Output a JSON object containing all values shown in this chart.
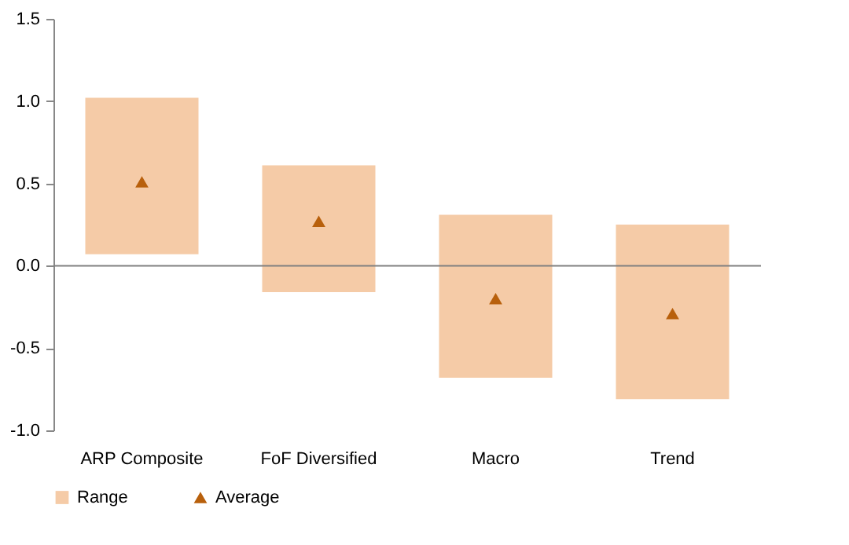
{
  "chart_data": {
    "type": "bar",
    "categories": [
      "ARP Composite",
      "FoF Diversified",
      "Macro",
      "Trend"
    ],
    "series": [
      {
        "name": "Range",
        "type": "bar",
        "color": "#f5cba7",
        "base": [
          0.07,
          -0.16,
          -0.68,
          -0.81
        ],
        "values": [
          0.95,
          0.77,
          0.99,
          1.06
        ]
      },
      {
        "name": "Average",
        "type": "scatter",
        "marker": "triangle",
        "color": "#b8600c",
        "x": [
          "ARP Composite",
          "FoF Diversified",
          "Macro",
          "Trend"
        ],
        "values": [
          0.51,
          0.27,
          -0.2,
          -0.29
        ]
      }
    ],
    "ylim": [
      -1.0,
      1.5
    ],
    "yticks": [
      {
        "value": -1.0,
        "label": "-1.0"
      },
      {
        "value": -0.5,
        "label": "-0.5"
      },
      {
        "value": 0,
        "label": "0.0"
      },
      {
        "value": 0.5,
        "label": "0.5"
      },
      {
        "value": 1.0,
        "label": "1.0"
      },
      {
        "value": 1.5,
        "label": "1.5"
      }
    ],
    "ref_lines": [
      {
        "axis": "y",
        "value": 0,
        "color": "#808080"
      }
    ],
    "grid": false,
    "legend": "bottom"
  }
}
